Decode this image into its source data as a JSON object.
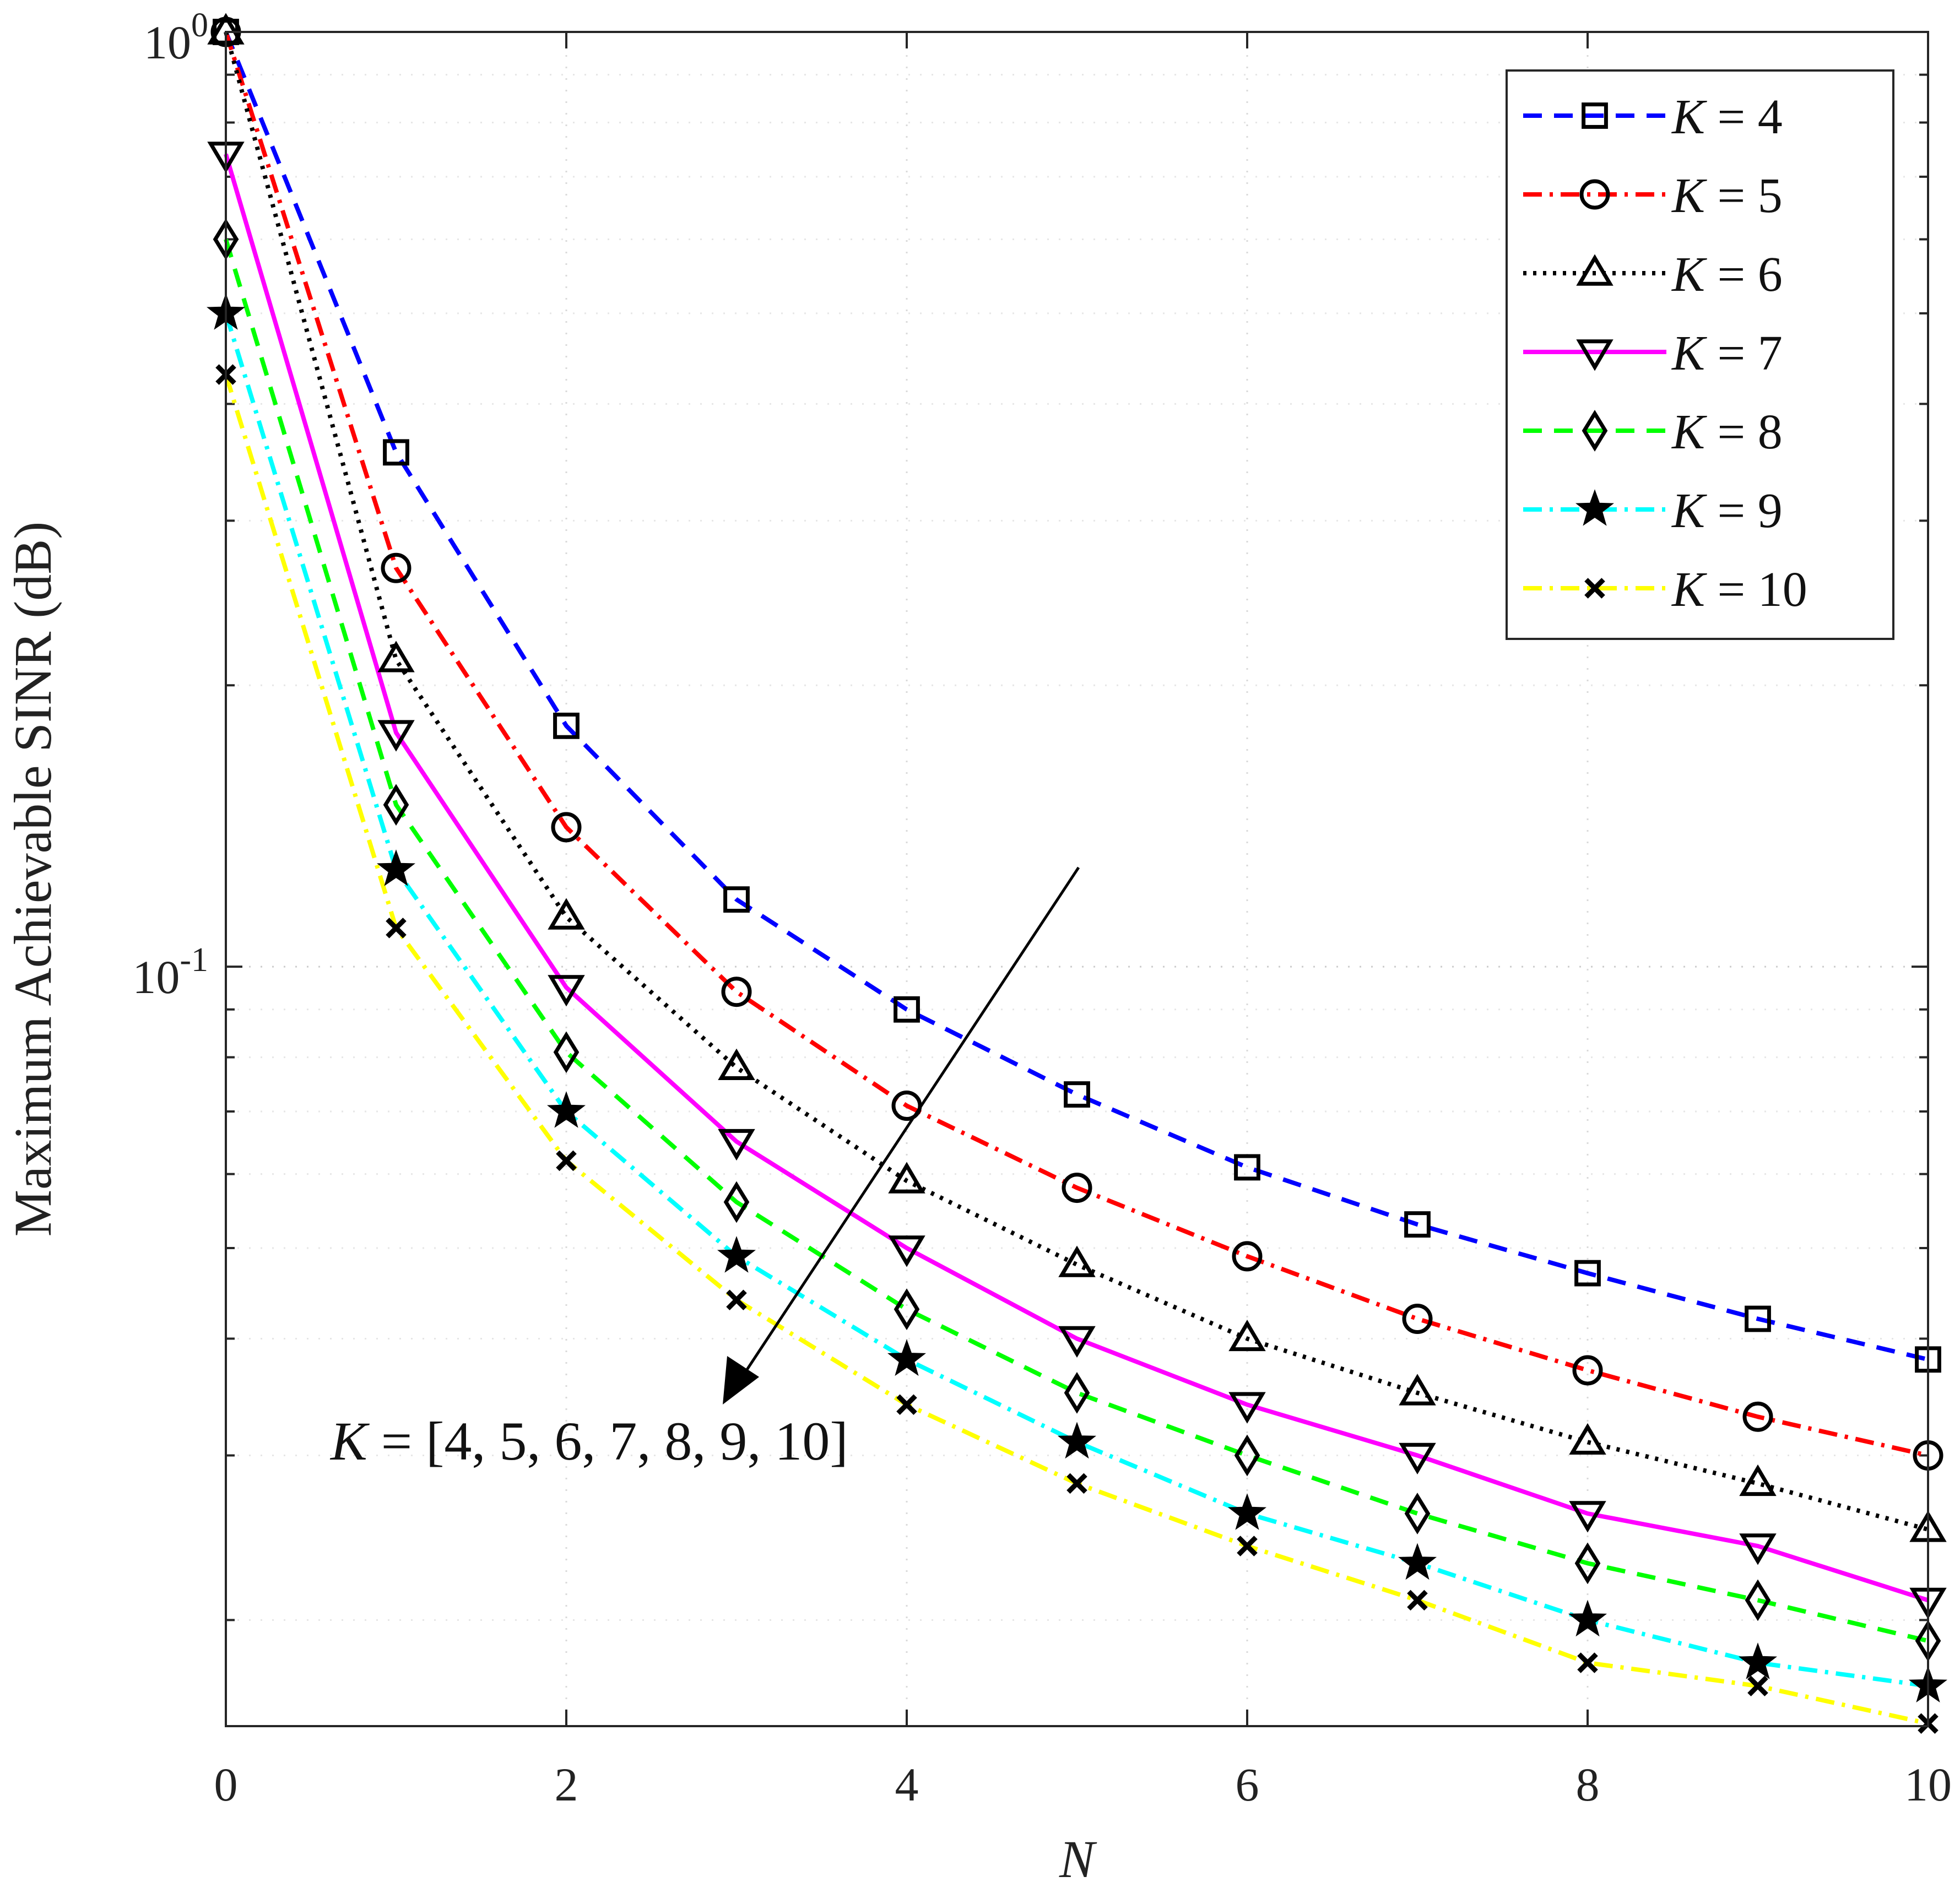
{
  "chart_data": {
    "type": "line",
    "xlabel": "N",
    "ylabel": "Maximum Achievable SINR (dB)",
    "xlim": [
      0,
      10
    ],
    "ylim": [
      0.0154,
      1.0
    ],
    "yscale": "log",
    "grid": true,
    "x_ticks": [
      "0",
      "2",
      "4",
      "6",
      "8",
      "10"
    ],
    "y_ticks": [
      {
        "base": "10",
        "exp": "0"
      },
      {
        "base": "10",
        "exp": "-1"
      }
    ],
    "legend_position": "top-right",
    "x": [
      0,
      1,
      2,
      3,
      4,
      5,
      6,
      7,
      8,
      9,
      10
    ],
    "series": [
      {
        "name": "4",
        "color": "#0000ff",
        "dash": "dashed",
        "marker": "square",
        "values": [
          1.0,
          0.355,
          0.181,
          0.118,
          0.09,
          0.073,
          0.061,
          0.053,
          0.047,
          0.042,
          0.038
        ]
      },
      {
        "name": "5",
        "color": "#ff0000",
        "dash": "dashdot",
        "marker": "circle",
        "values": [
          1.0,
          0.267,
          0.141,
          0.094,
          0.071,
          0.058,
          0.049,
          0.042,
          0.037,
          0.033,
          0.03
        ]
      },
      {
        "name": "6",
        "color": "#000000",
        "dash": "dotted",
        "marker": "triangle-up",
        "values": [
          1.0,
          0.213,
          0.113,
          0.078,
          0.059,
          0.048,
          0.04,
          0.035,
          0.031,
          0.028,
          0.025
        ]
      },
      {
        "name": "7",
        "color": "#ff00ff",
        "dash": "solid",
        "marker": "triangle-down",
        "values": [
          0.74,
          0.178,
          0.095,
          0.065,
          0.05,
          0.04,
          0.034,
          0.03,
          0.026,
          0.024,
          0.021
        ]
      },
      {
        "name": "8",
        "color": "#00ff00",
        "dash": "dashed",
        "marker": "diamond",
        "values": [
          0.6,
          0.149,
          0.081,
          0.056,
          0.043,
          0.035,
          0.03,
          0.026,
          0.023,
          0.021,
          0.019
        ]
      },
      {
        "name": "9",
        "color": "#00ffff",
        "dash": "dashdot",
        "marker": "star",
        "values": [
          0.5,
          0.127,
          0.07,
          0.049,
          0.038,
          0.031,
          0.026,
          0.023,
          0.02,
          0.018,
          0.017
        ]
      },
      {
        "name": "10",
        "color": "#ffff00",
        "dash": "dashdot",
        "marker": "x",
        "values": [
          0.43,
          0.11,
          0.062,
          0.044,
          0.034,
          0.028,
          0.024,
          0.021,
          0.018,
          0.017,
          0.0155
        ]
      }
    ],
    "annotation": {
      "text": "K = [4, 5, 6, 7, 8, 9, 10]",
      "var": "K",
      "rest": " = [4, 5, 6, 7, 8, 9, 10]"
    },
    "legend_var": "K"
  }
}
